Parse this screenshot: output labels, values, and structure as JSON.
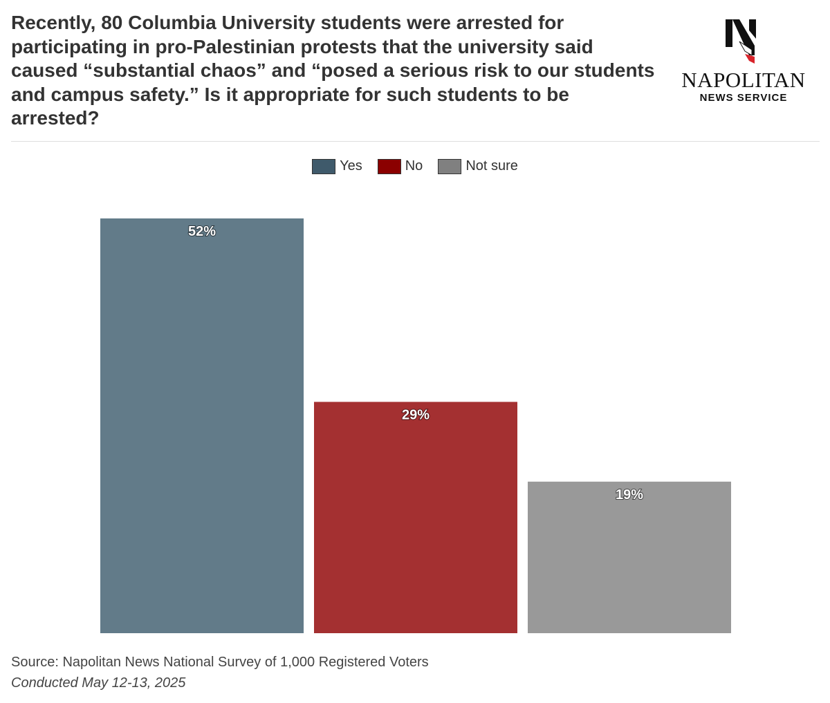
{
  "chart_data": {
    "type": "bar",
    "title": "Recently, 80 Columbia University students were arrested for participating in pro-Palestinian protests that the university said caused “substantial chaos” and “posed a serious risk to our students and campus safety.” Is it appropriate for such students to be arrested?",
    "categories": [
      "Yes",
      "No",
      "Not sure"
    ],
    "values": [
      52,
      29,
      19
    ],
    "data_labels": [
      "52%",
      "29%",
      "19%"
    ],
    "colors": [
      "#627b89",
      "#a43031",
      "#999999"
    ],
    "legend": {
      "placement": "top-center",
      "entries": [
        {
          "label": "Yes",
          "color": "#3f5a6b"
        },
        {
          "label": "No",
          "color": "#8b0000"
        },
        {
          "label": "Not sure",
          "color": "#808080"
        }
      ]
    },
    "ylim": [
      0,
      52
    ],
    "grid": false,
    "xlabel": "",
    "ylabel": ""
  },
  "logo": {
    "name": "NAPOLITAN",
    "subtitle": "NEWS SERVICE"
  },
  "footer": {
    "source": "Source: Napolitan News National Survey of 1,000 Registered Voters",
    "conducted": "Conducted May 12-13, 2025"
  }
}
